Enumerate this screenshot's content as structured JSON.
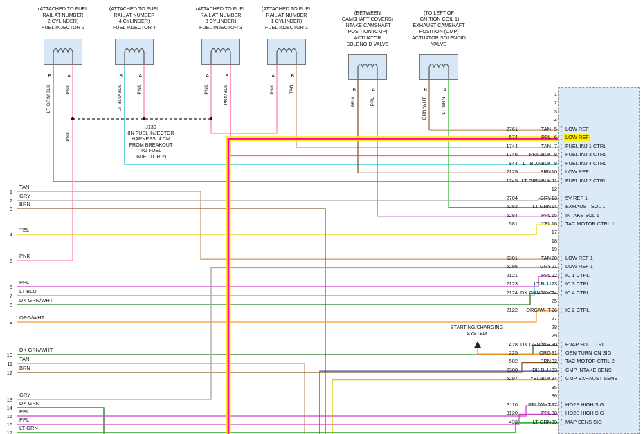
{
  "palette": {
    "TAN": "#C49A6C",
    "GRY": "#A6A6A6",
    "BRN": "#8A5A2B",
    "BRN_WHT": "#9C7044",
    "YEL": "#E4D300",
    "YEL_BLK": "#D8C400",
    "PNK": "#FF85B5",
    "PNK_BLK": "#FF5C9E",
    "PPL": "#CC44CC",
    "PPL_WHT": "#D66AD6",
    "LT_BLU": "#25C2D8",
    "LT_BLU_BLK": "#17BFBF",
    "LT_GRN": "#33BB33",
    "LT_GRN_BLK": "#2FA52F",
    "DK_GRN": "#1C6E1C",
    "DK_GRN_WHT": "#237A23",
    "ORG": "#FF8C1A",
    "ORG_WHT": "#FF9633",
    "DK_BLU": "#2B4EA8",
    "SPLICE": "#222222",
    "HIGHLIGHT_WIRE": "#FF00B4",
    "HIGHLIGHT_GLOW": "#FFEB00"
  },
  "components": [
    {
      "caption": "(ATTACHED TO FUEL\nRAIL AT NUMBER\n2 CYLINDER)\nFUEL INJECTOR 2",
      "left_pin": "B",
      "right_pin": "A",
      "left_wire": "LT GRN/BLK",
      "right_wire": "PNK"
    },
    {
      "caption": "(ATTACHED TO FUEL\nRAIL AT NUMBER\n4 CYLINDER)\nFUEL INJECTOR 4",
      "left_pin": "B",
      "right_pin": "A",
      "left_wire": "LT BLU/BLK",
      "right_wire": "PNK"
    },
    {
      "caption": "(ATTACHED TO FUEL\nRAIL AT NUMBER\n3 CYLINDER)\nFUEL INJECTOR 3",
      "left_pin": "A",
      "right_pin": "B",
      "left_wire": "PNK",
      "right_wire": "PNK/BLK"
    },
    {
      "caption": "(ATTACHED TO FUEL\nRAIL AT NUMBER\n1 CYLINDER)\nFUEL INJECTOR 1",
      "left_pin": "A",
      "right_pin": "B",
      "left_wire": "PNK",
      "right_wire": "TAN"
    },
    {
      "caption": "(BETWEEN\nCAMSHAFT COVERS)\nINTAKE CAMSHAFT\nPOSITION (CMP)\nACTUATOR\nSOLENOID VALVE",
      "left_pin": "B",
      "right_pin": "A",
      "left_wire": "BRN",
      "right_wire": "PPL"
    },
    {
      "caption": "(TO LEFT OF\nIGNITION COIL 1)\nEXHAUST CAMSHAFT\nPOSITION (CMP)\nACTUATOR SOLENOID\nVALVE",
      "left_pin": "B",
      "right_pin": "A",
      "left_wire": "BRN/WHT",
      "right_wire": "LT GRN"
    }
  ],
  "splice_note": "J130\n(IN FUEL INJECTOR\nHARNESS: 4 CM\nFROM BREAKOUT\nTO FUEL\nINJECTOR 2)",
  "splice_feed_label": "PNK",
  "starting_charging": "STARTING/CHARGING\nSYSTEM",
  "left_connector": {
    "pins": [
      {
        "n": 1,
        "wire": "TAN"
      },
      {
        "n": 2,
        "wire": "GRY"
      },
      {
        "n": 3,
        "wire": "BRN"
      },
      {
        "n": 4,
        "wire": "YEL"
      },
      {
        "n": 5,
        "wire": "PNK"
      },
      {
        "n": 6,
        "wire": "PPL"
      },
      {
        "n": 7,
        "wire": "LT BLU"
      },
      {
        "n": 8,
        "wire": "DK GRN/WHT"
      },
      {
        "n": 9,
        "wire": "ORG/WHT"
      },
      {
        "n": 10,
        "wire": "DK GRN/WHT"
      },
      {
        "n": 11,
        "wire": "TAN"
      },
      {
        "n": 12,
        "wire": "BRN"
      },
      {
        "n": 13,
        "wire": "GRY"
      },
      {
        "n": 14,
        "wire": "DK GRN"
      },
      {
        "n": 15,
        "wire": "PPL"
      },
      {
        "n": 16,
        "wire": "PPL"
      },
      {
        "n": 17,
        "wire": "LT GRN"
      }
    ]
  },
  "right_connector": {
    "pins": [
      {
        "n": 1
      },
      {
        "n": 2
      },
      {
        "n": 3
      },
      {
        "n": 4
      },
      {
        "n": 5,
        "circuit": "2761",
        "color": "TAN",
        "brace": "(",
        "label": "LOW REF"
      },
      {
        "n": 6,
        "circuit": "574",
        "color": "PPL",
        "brace": "(",
        "label": "LOW REF",
        "highlight": true
      },
      {
        "n": 7,
        "circuit": "1744",
        "color": "TAN",
        "brace": "(",
        "label": "FUEL INJ 1 CTRL"
      },
      {
        "n": 8,
        "circuit": "1746",
        "color": "PNK/BLK",
        "brace": "(",
        "label": "FUEL INJ 3 CTRL"
      },
      {
        "n": 9,
        "circuit": "844",
        "color": "LT BLU/BLK",
        "brace": "(",
        "label": "FUEL INJ 4 CTRL"
      },
      {
        "n": 10,
        "circuit": "2129",
        "color": "BRN",
        "brace": "(",
        "label": "LOW REF"
      },
      {
        "n": 11,
        "circuit": "1745",
        "color": "LT GRN/BLK",
        "brace": "(",
        "label": "FUEL INJ 2 CTRL"
      },
      {
        "n": 12
      },
      {
        "n": 13,
        "circuit": "2704",
        "color": "GRY",
        "brace": "(",
        "label": "5V REF 1"
      },
      {
        "n": 14,
        "circuit": "5282",
        "color": "LT GRN",
        "brace": "(",
        "label": "EXHAUST SOL 1"
      },
      {
        "n": 15,
        "circuit": "5284",
        "color": "PPL",
        "brace": "(",
        "label": "INTAKE SOL 1"
      },
      {
        "n": 16,
        "circuit": "581",
        "color": "YEL",
        "brace": "(",
        "label": "TAC MOTOR CTRL 1"
      },
      {
        "n": 17
      },
      {
        "n": 18
      },
      {
        "n": 19
      },
      {
        "n": 20,
        "circuit": "5301",
        "color": "TAN",
        "brace": "(",
        "label": "LOW REF 1"
      },
      {
        "n": 21,
        "circuit": "5296",
        "color": "GRY",
        "brace": "(",
        "label": "LOW REF 1"
      },
      {
        "n": 22,
        "circuit": "2121",
        "color": "PPL",
        "brace": "(",
        "label": "IC 1 CTRL"
      },
      {
        "n": 23,
        "circuit": "2123",
        "color": "LT BLU",
        "brace": "(",
        "label": "IC 3 CTRL"
      },
      {
        "n": 24,
        "circuit": "2124",
        "color": "DK GRN/WHT",
        "brace": "(",
        "label": "IC 4 CTRL"
      },
      {
        "n": 25
      },
      {
        "n": 26,
        "circuit": "2122",
        "color": "ORG/WHT",
        "brace": "(",
        "label": "IC 2 CTRL"
      },
      {
        "n": 27
      },
      {
        "n": 28
      },
      {
        "n": 29
      },
      {
        "n": 30,
        "circuit": "428",
        "color": "DK GRN/WHT",
        "brace": "(",
        "label": "EVAP SOL CTRL"
      },
      {
        "n": 31,
        "circuit": "225",
        "color": "ORG",
        "brace": "(",
        "label": "GEN TURN ON SIG"
      },
      {
        "n": 32,
        "circuit": "582",
        "color": "BRN",
        "brace": "(",
        "label": "TAC MOTOR CTRL 2"
      },
      {
        "n": 33,
        "circuit": "5300",
        "color": "DK BLU",
        "brace": "(",
        "label": "CMP INTAKE SENS"
      },
      {
        "n": 34,
        "circuit": "5297",
        "color": "YEL/BLK",
        "brace": "(",
        "label": "CMP EXHAUST SENS"
      },
      {
        "n": 35
      },
      {
        "n": 36
      },
      {
        "n": 37,
        "circuit": "3110",
        "color": "PPL/WHT",
        "brace": "(",
        "label": "HO2S HIGH SIG"
      },
      {
        "n": 38,
        "circuit": "3120",
        "color": "PPL",
        "brace": "(",
        "label": "HO2S HIGH SIG"
      },
      {
        "n": 39,
        "circuit": "432",
        "color": "LT GRN",
        "brace": "(",
        "label": "MAP SENS SIG"
      }
    ]
  }
}
